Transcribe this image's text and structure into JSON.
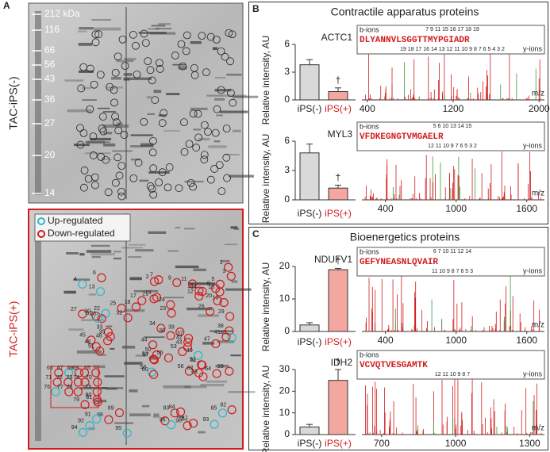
{
  "panel_a": {
    "letter": "A",
    "top_label": "TAC-iPS(-)",
    "bottom_label": "TAC-iPS(+)",
    "markers": [
      "212 kDa",
      "116",
      "66",
      "56",
      "43",
      "36",
      "27",
      "20",
      "14"
    ],
    "legend": [
      "Up-regulated",
      "Down-regulated"
    ],
    "spots": [
      "1",
      "2",
      "3",
      "4",
      "5",
      "6",
      "7",
      "8",
      "9",
      "10",
      "11",
      "12",
      "13",
      "14",
      "15",
      "16",
      "17",
      "18",
      "19",
      "20",
      "21",
      "22",
      "23",
      "24",
      "25",
      "26",
      "27",
      "28",
      "29",
      "30",
      "31",
      "32",
      "33",
      "34",
      "35",
      "36",
      "37",
      "38",
      "39",
      "40",
      "41",
      "42",
      "43",
      "44",
      "45",
      "46",
      "47",
      "48",
      "49",
      "50",
      "51",
      "52",
      "53",
      "54",
      "55",
      "56",
      "57",
      "58",
      "59",
      "60",
      "61",
      "62",
      "63",
      "64",
      "65",
      "66",
      "67",
      "68",
      "69",
      "70",
      "71",
      "72",
      "73",
      "74",
      "75",
      "76",
      "77",
      "78",
      "79",
      "80",
      "81",
      "82",
      "83",
      "84",
      "85",
      "86",
      "87",
      "88",
      "89",
      "90",
      "91",
      "92",
      "93",
      "94",
      "95",
      "96"
    ]
  },
  "panel_b": {
    "letter": "B",
    "title": "Contractile apparatus proteins"
  },
  "panel_c": {
    "letter": "C",
    "title": "Bioenergetics proteins"
  },
  "chart_data": [
    {
      "type": "bar",
      "title": "ACTC1",
      "ylabel": "Relative intensity, AU",
      "categories": [
        "iPS(-)",
        "iPS(+)"
      ],
      "values": [
        3.8,
        0.9
      ],
      "errors": [
        0.55,
        0.4
      ],
      "colors": [
        "#d9d9d9",
        "#f4a6a0"
      ],
      "label_colors": [
        "#222222",
        "#d21c1c"
      ],
      "annotation": "†",
      "ylim": [
        0,
        6
      ],
      "yticks": [
        0,
        3,
        6
      ],
      "spectrum": {
        "xlabel": "m/z",
        "xlim": [
          350,
          2050
        ],
        "xticks": [
          400,
          1200,
          2000
        ],
        "b_label": "b-ions",
        "y_label": "y-ions",
        "sequence": "DLYANNVLSGGTTMYPGIADR",
        "b_numbers": "7 9 11 15 16 17 18 19",
        "y_numbers": "19 18 17 16 14 13 12 11 10 9 8 7 6 5 4 3 2"
      }
    },
    {
      "type": "bar",
      "title": "MYL3",
      "ylabel": "Relative intensity, AU",
      "categories": [
        "iPS(-)",
        "iPS(+)"
      ],
      "values": [
        4.8,
        1.2
      ],
      "errors": [
        0.9,
        0.3
      ],
      "colors": [
        "#d9d9d9",
        "#f4a6a0"
      ],
      "label_colors": [
        "#222222",
        "#d21c1c"
      ],
      "annotation": "†",
      "ylim": [
        0,
        6
      ],
      "yticks": [
        0,
        3,
        6
      ],
      "spectrum": {
        "xlabel": "m/z",
        "xlim": [
          200,
          1750
        ],
        "xticks": [
          400,
          1000,
          1600
        ],
        "b_label": "b-ions",
        "y_label": "y-ions",
        "sequence": "VFDKEGNGTVMGAELR",
        "b_numbers": "5 6 10 13 14 15",
        "y_numbers": "12 11 10 9 7 6 5 3 2"
      }
    },
    {
      "type": "bar",
      "title": "NDUFV1",
      "ylabel": "Relative intensity, AU",
      "categories": [
        "iPS(-)",
        "iPS(+)"
      ],
      "values": [
        2,
        19
      ],
      "errors": [
        0.7,
        0.4
      ],
      "colors": [
        "#d9d9d9",
        "#f4a6a0"
      ],
      "label_colors": [
        "#222222",
        "#d21c1c"
      ],
      "annotation": "†",
      "ylim": [
        0,
        20
      ],
      "yticks": [
        0,
        10,
        20
      ],
      "spectrum": {
        "xlabel": "m/z",
        "xlim": [
          200,
          1750
        ],
        "xticks": [
          400,
          1000,
          1600
        ],
        "b_label": "b-ions",
        "y_label": "y-ions",
        "sequence": "GEFYNEASNLQVAIR",
        "b_numbers": "6 7 10 11 12 14",
        "y_numbers": "11 10 9 8 7 6 5 3"
      }
    },
    {
      "type": "bar",
      "title": "IDH2",
      "ylabel": "Relative intensity, AU",
      "categories": [
        "iPS(-)",
        "iPS(+)"
      ],
      "values": [
        3.5,
        25
      ],
      "errors": [
        1.2,
        5
      ],
      "colors": [
        "#d9d9d9",
        "#f4a6a0"
      ],
      "label_colors": [
        "#222222",
        "#d21c1c"
      ],
      "annotation": "†",
      "ylim": [
        0,
        30
      ],
      "yticks": [
        0,
        10,
        20,
        30
      ],
      "spectrum": {
        "xlabel": "m/z",
        "xlim": [
          620,
          1360
        ],
        "xticks": [
          700,
          1000,
          1300
        ],
        "b_label": "b-ions",
        "y_label": "y-ions",
        "sequence": "VCVQTVESGAMTK",
        "b_numbers": "",
        "y_numbers": "12 11 10 9 8 7"
      }
    }
  ]
}
